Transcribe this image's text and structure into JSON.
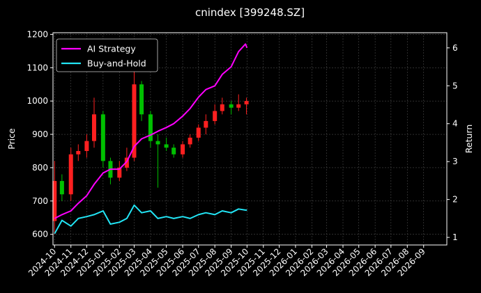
{
  "chart_data": {
    "type": "line",
    "title": "cnindex [399248.SZ]",
    "xlabel": "",
    "ylabel_left": "Price",
    "ylabel_right": "Return",
    "ylim_left": [
      568,
      1205
    ],
    "ylim_right": [
      0.8,
      6.4
    ],
    "xlim": [
      "2024-09-28",
      "2026-10-15"
    ],
    "yticks_left": [
      600,
      700,
      800,
      900,
      1000,
      1100,
      1200
    ],
    "yticks_right": [
      1,
      2,
      3,
      4,
      5,
      6
    ],
    "x_tick_labels": [
      "2024-10",
      "2024-11",
      "2024-12",
      "2025-01",
      "2025-02",
      "2025-03",
      "2025-04",
      "2025-05",
      "2025-06",
      "2025-07",
      "2025-08",
      "2025-09",
      "2025-10",
      "2025-11",
      "2025-12",
      "2026-01",
      "2026-02",
      "2026-03",
      "2026-04",
      "2026-05",
      "2026-06",
      "2026-07",
      "2026-08",
      "2026-09"
    ],
    "grid": true,
    "legend_position": "top-left",
    "candles": {
      "up_color": "#ff2020",
      "down_color": "#00c000",
      "x": [
        "2024-10-01",
        "2024-10-15",
        "2024-11-01",
        "2024-11-15",
        "2024-12-01",
        "2024-12-15",
        "2025-01-01",
        "2025-01-15",
        "2025-02-01",
        "2025-02-15",
        "2025-03-01",
        "2025-03-15",
        "2025-04-01",
        "2025-04-15",
        "2025-05-01",
        "2025-05-15",
        "2025-06-01",
        "2025-06-15",
        "2025-07-01",
        "2025-07-15",
        "2025-08-01",
        "2025-08-15",
        "2025-09-01",
        "2025-09-15",
        "2025-09-30"
      ],
      "open": [
        640,
        760,
        720,
        840,
        850,
        880,
        960,
        820,
        770,
        800,
        830,
        1050,
        960,
        880,
        870,
        860,
        840,
        870,
        890,
        920,
        940,
        970,
        990,
        980,
        990
      ],
      "close": [
        760,
        720,
        840,
        850,
        880,
        960,
        820,
        770,
        800,
        830,
        1050,
        960,
        880,
        870,
        860,
        840,
        870,
        890,
        920,
        940,
        970,
        990,
        980,
        990,
        1000
      ],
      "high": [
        820,
        780,
        860,
        870,
        900,
        1010,
        970,
        830,
        820,
        860,
        1120,
        1060,
        970,
        900,
        890,
        870,
        880,
        900,
        930,
        960,
        990,
        1010,
        1000,
        1020,
        1010
      ],
      "low": [
        600,
        700,
        700,
        820,
        830,
        860,
        800,
        750,
        760,
        790,
        820,
        940,
        860,
        740,
        850,
        830,
        830,
        860,
        880,
        900,
        930,
        960,
        960,
        970,
        960
      ]
    },
    "series": [
      {
        "name": "AI Strategy",
        "color": "#ff00ff",
        "axis": "right",
        "x": [
          "2024-10-01",
          "2024-10-15",
          "2024-11-01",
          "2024-11-15",
          "2024-12-01",
          "2024-12-15",
          "2025-01-01",
          "2025-01-15",
          "2025-02-01",
          "2025-02-15",
          "2025-03-01",
          "2025-03-15",
          "2025-04-01",
          "2025-04-15",
          "2025-05-01",
          "2025-05-15",
          "2025-06-01",
          "2025-06-15",
          "2025-07-01",
          "2025-07-15",
          "2025-08-01",
          "2025-08-15",
          "2025-09-01",
          "2025-09-15",
          "2025-09-28",
          "2025-10-01"
        ],
        "values": [
          1.5,
          1.6,
          1.7,
          1.9,
          2.1,
          2.4,
          2.7,
          2.8,
          2.8,
          3.0,
          3.4,
          3.6,
          3.7,
          3.8,
          3.9,
          4.0,
          4.2,
          4.4,
          4.7,
          4.9,
          5.0,
          5.3,
          5.5,
          5.9,
          6.1,
          6.0
        ]
      },
      {
        "name": "Buy-and-Hold",
        "color": "#22e5f5",
        "axis": "right",
        "x": [
          "2024-10-01",
          "2024-10-15",
          "2024-11-01",
          "2024-11-15",
          "2024-12-01",
          "2024-12-15",
          "2025-01-01",
          "2025-01-15",
          "2025-02-01",
          "2025-02-15",
          "2025-03-01",
          "2025-03-15",
          "2025-04-01",
          "2025-04-15",
          "2025-05-01",
          "2025-05-15",
          "2025-06-01",
          "2025-06-15",
          "2025-07-01",
          "2025-07-15",
          "2025-08-01",
          "2025-08-15",
          "2025-09-01",
          "2025-09-15",
          "2025-09-28",
          "2025-10-01"
        ],
        "values": [
          1.1,
          1.45,
          1.3,
          1.5,
          1.55,
          1.6,
          1.7,
          1.35,
          1.4,
          1.5,
          1.85,
          1.65,
          1.7,
          1.5,
          1.55,
          1.5,
          1.55,
          1.5,
          1.6,
          1.65,
          1.6,
          1.7,
          1.65,
          1.75,
          1.72,
          1.72
        ]
      }
    ]
  }
}
